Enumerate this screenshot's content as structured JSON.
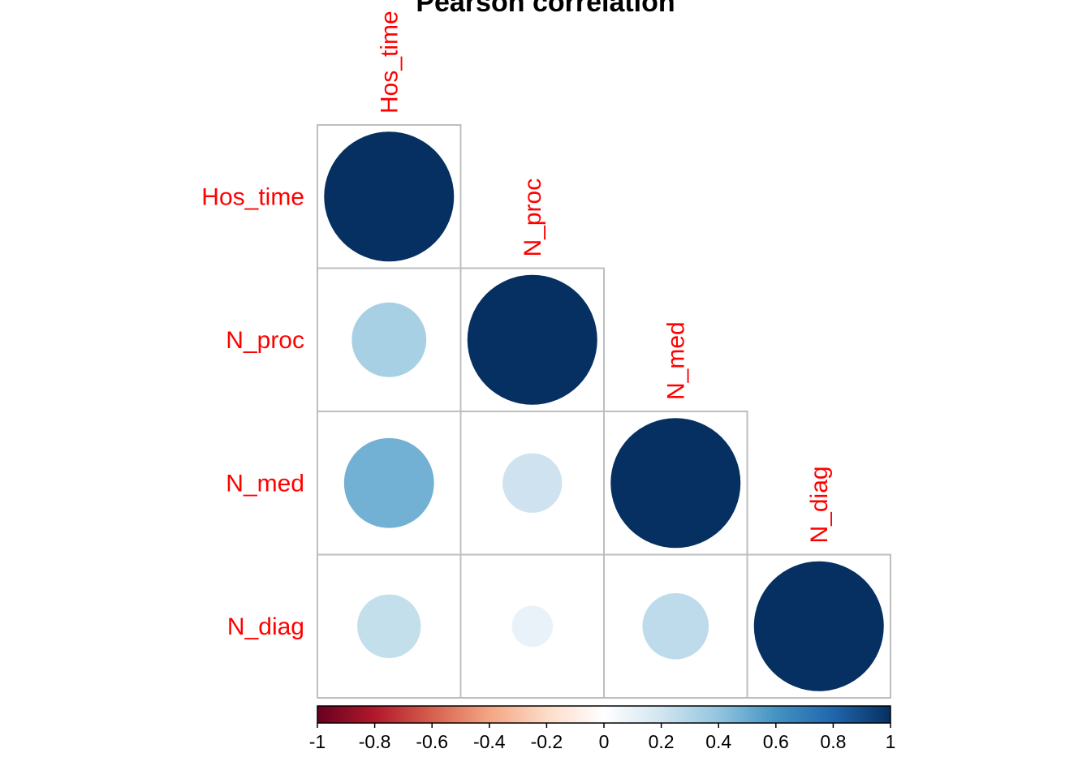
{
  "chart_data": {
    "type": "heatmap",
    "subtype": "corrplot-circle-lower",
    "title": "Pearson correlation",
    "variables": [
      "Hos_time",
      "N_proc",
      "N_med",
      "N_diag"
    ],
    "matrix": [
      [
        1.0,
        null,
        null,
        null
      ],
      [
        0.33,
        1.0,
        null,
        null
      ],
      [
        0.48,
        0.21,
        1.0,
        null
      ],
      [
        0.24,
        0.1,
        0.26,
        1.0
      ]
    ],
    "colorbar": {
      "range": [
        -1,
        1
      ],
      "ticks": [
        "-1",
        "-0.8",
        "-0.6",
        "-0.4",
        "-0.2",
        "0",
        "0.2",
        "0.4",
        "0.6",
        "0.8",
        "1"
      ],
      "palette": [
        "#67001F",
        "#B2182B",
        "#D6604D",
        "#F4A582",
        "#FDDBC7",
        "#FFFFFF",
        "#D1E5F0",
        "#92C5DE",
        "#4393C3",
        "#2166AC",
        "#053061"
      ]
    },
    "label_color": "#FF0000",
    "grid_color": "#BEBEBE"
  }
}
